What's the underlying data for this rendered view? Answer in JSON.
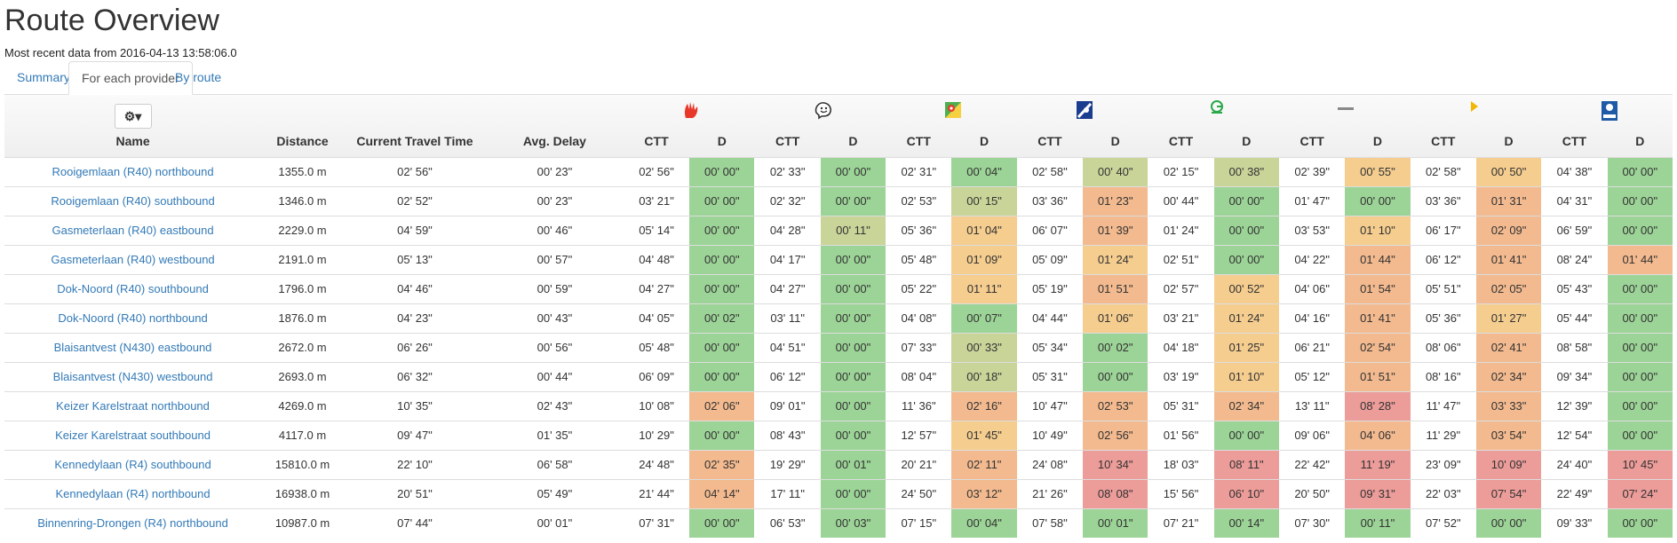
{
  "page": {
    "title": "Route Overview",
    "subtitle": "Most recent data from 2016-04-13 13:58:06.0"
  },
  "tabs": [
    {
      "label": "Summary",
      "active": false
    },
    {
      "label": "For each provider",
      "active": true
    },
    {
      "label": "By route",
      "active": false
    }
  ],
  "columns": {
    "gear_icon": "gear-icon",
    "name": "Name",
    "distance": "Distance",
    "ctt": "Current Travel Time",
    "delay": "Avg. Delay",
    "prov_ctt": "CTT",
    "prov_d": "D"
  },
  "providers": [
    {
      "icon": "hand-logo-icon",
      "color": "#e8382a"
    },
    {
      "icon": "waze-icon",
      "color": "#333333"
    },
    {
      "icon": "google-maps-icon",
      "color": "#4caf50"
    },
    {
      "icon": "tomtom-icon",
      "color": "#1a3d8f"
    },
    {
      "icon": "coyote-icon",
      "color": "#2aa84a"
    },
    {
      "icon": "here-icon",
      "color": "#888888"
    },
    {
      "icon": "bing-icon",
      "color": "#f2b705"
    },
    {
      "icon": "michelin-icon",
      "color": "#1f5aa6"
    }
  ],
  "status_colors": {
    "g": "#9cd497",
    "l": "#c9d499",
    "y": "#f5cd8f",
    "o": "#f3ba8f",
    "r": "#ec9c99"
  },
  "rows": [
    {
      "name": "Rooigemlaan (R40) northbound",
      "distance": "1355.0 m",
      "ctt": "02' 56\"",
      "delay": "00' 23\"",
      "p": [
        [
          "02' 56\"",
          "00' 00\"",
          "g"
        ],
        [
          "02' 33\"",
          "00' 00\"",
          "g"
        ],
        [
          "02' 31\"",
          "00' 04\"",
          "g"
        ],
        [
          "02' 58\"",
          "00' 40\"",
          "l"
        ],
        [
          "02' 15\"",
          "00' 38\"",
          "l"
        ],
        [
          "02' 39\"",
          "00' 55\"",
          "y"
        ],
        [
          "02' 58\"",
          "00' 50\"",
          "y"
        ],
        [
          "04' 38\"",
          "00' 00\"",
          "g"
        ]
      ]
    },
    {
      "name": "Rooigemlaan (R40) southbound",
      "distance": "1346.0 m",
      "ctt": "02' 52\"",
      "delay": "00' 23\"",
      "p": [
        [
          "03' 21\"",
          "00' 00\"",
          "g"
        ],
        [
          "02' 32\"",
          "00' 00\"",
          "g"
        ],
        [
          "02' 53\"",
          "00' 15\"",
          "l"
        ],
        [
          "03' 36\"",
          "01' 23\"",
          "o"
        ],
        [
          "00' 44\"",
          "00' 00\"",
          "g"
        ],
        [
          "01' 47\"",
          "00' 00\"",
          "g"
        ],
        [
          "03' 36\"",
          "01' 31\"",
          "o"
        ],
        [
          "04' 31\"",
          "00' 00\"",
          "g"
        ]
      ]
    },
    {
      "name": "Gasmeterlaan (R40) eastbound",
      "distance": "2229.0 m",
      "ctt": "04' 59\"",
      "delay": "00' 46\"",
      "p": [
        [
          "05' 14\"",
          "00' 00\"",
          "g"
        ],
        [
          "04' 28\"",
          "00' 11\"",
          "l"
        ],
        [
          "05' 36\"",
          "01' 04\"",
          "y"
        ],
        [
          "06' 07\"",
          "01' 39\"",
          "o"
        ],
        [
          "01' 24\"",
          "00' 00\"",
          "g"
        ],
        [
          "03' 53\"",
          "01' 10\"",
          "y"
        ],
        [
          "06' 17\"",
          "02' 09\"",
          "o"
        ],
        [
          "06' 59\"",
          "00' 00\"",
          "g"
        ]
      ]
    },
    {
      "name": "Gasmeterlaan (R40) westbound",
      "distance": "2191.0 m",
      "ctt": "05' 13\"",
      "delay": "00' 57\"",
      "p": [
        [
          "04' 48\"",
          "00' 00\"",
          "g"
        ],
        [
          "04' 17\"",
          "00' 00\"",
          "g"
        ],
        [
          "05' 48\"",
          "01' 09\"",
          "y"
        ],
        [
          "05' 09\"",
          "01' 24\"",
          "y"
        ],
        [
          "02' 51\"",
          "00' 00\"",
          "g"
        ],
        [
          "04' 22\"",
          "01' 44\"",
          "o"
        ],
        [
          "06' 12\"",
          "01' 41\"",
          "o"
        ],
        [
          "08' 24\"",
          "01' 44\"",
          "o"
        ]
      ]
    },
    {
      "name": "Dok-Noord (R40) southbound",
      "distance": "1796.0 m",
      "ctt": "04' 46\"",
      "delay": "00' 59\"",
      "p": [
        [
          "04' 27\"",
          "00' 00\"",
          "g"
        ],
        [
          "04' 27\"",
          "00' 00\"",
          "g"
        ],
        [
          "05' 22\"",
          "01' 11\"",
          "y"
        ],
        [
          "05' 19\"",
          "01' 51\"",
          "o"
        ],
        [
          "02' 57\"",
          "00' 52\"",
          "y"
        ],
        [
          "04' 06\"",
          "01' 54\"",
          "o"
        ],
        [
          "05' 51\"",
          "02' 05\"",
          "o"
        ],
        [
          "05' 43\"",
          "00' 00\"",
          "g"
        ]
      ]
    },
    {
      "name": "Dok-Noord (R40) northbound",
      "distance": "1876.0 m",
      "ctt": "04' 23\"",
      "delay": "00' 43\"",
      "p": [
        [
          "04' 05\"",
          "00' 02\"",
          "g"
        ],
        [
          "03' 11\"",
          "00' 00\"",
          "g"
        ],
        [
          "04' 08\"",
          "00' 07\"",
          "g"
        ],
        [
          "04' 44\"",
          "01' 06\"",
          "y"
        ],
        [
          "03' 21\"",
          "01' 24\"",
          "y"
        ],
        [
          "04' 16\"",
          "01' 41\"",
          "o"
        ],
        [
          "05' 36\"",
          "01' 27\"",
          "y"
        ],
        [
          "05' 44\"",
          "00' 00\"",
          "g"
        ]
      ]
    },
    {
      "name": "Blaisantvest (N430) eastbound",
      "distance": "2672.0 m",
      "ctt": "06' 26\"",
      "delay": "00' 56\"",
      "p": [
        [
          "05' 48\"",
          "00' 00\"",
          "g"
        ],
        [
          "04' 51\"",
          "00' 00\"",
          "g"
        ],
        [
          "07' 33\"",
          "00' 33\"",
          "l"
        ],
        [
          "05' 34\"",
          "00' 02\"",
          "g"
        ],
        [
          "04' 18\"",
          "01' 25\"",
          "y"
        ],
        [
          "06' 21\"",
          "02' 54\"",
          "o"
        ],
        [
          "08' 06\"",
          "02' 41\"",
          "o"
        ],
        [
          "08' 58\"",
          "00' 00\"",
          "g"
        ]
      ]
    },
    {
      "name": "Blaisantvest (N430) westbound",
      "distance": "2693.0 m",
      "ctt": "06' 32\"",
      "delay": "00' 44\"",
      "p": [
        [
          "06' 09\"",
          "00' 00\"",
          "g"
        ],
        [
          "06' 12\"",
          "00' 00\"",
          "g"
        ],
        [
          "08' 04\"",
          "00' 18\"",
          "l"
        ],
        [
          "05' 31\"",
          "00' 00\"",
          "g"
        ],
        [
          "03' 19\"",
          "01' 10\"",
          "y"
        ],
        [
          "05' 12\"",
          "01' 51\"",
          "o"
        ],
        [
          "08' 16\"",
          "02' 34\"",
          "o"
        ],
        [
          "09' 34\"",
          "00' 00\"",
          "g"
        ]
      ]
    },
    {
      "name": "Keizer Karelstraat northbound",
      "distance": "4269.0 m",
      "ctt": "10' 35\"",
      "delay": "02' 43\"",
      "p": [
        [
          "10' 08\"",
          "02' 06\"",
          "o"
        ],
        [
          "09' 01\"",
          "00' 00\"",
          "g"
        ],
        [
          "11' 36\"",
          "02' 16\"",
          "o"
        ],
        [
          "10' 47\"",
          "02' 53\"",
          "o"
        ],
        [
          "05' 31\"",
          "02' 34\"",
          "o"
        ],
        [
          "13' 11\"",
          "08' 28\"",
          "r"
        ],
        [
          "11' 47\"",
          "03' 33\"",
          "o"
        ],
        [
          "12' 39\"",
          "00' 00\"",
          "g"
        ]
      ]
    },
    {
      "name": "Keizer Karelstraat southbound",
      "distance": "4117.0 m",
      "ctt": "09' 47\"",
      "delay": "01' 35\"",
      "p": [
        [
          "10' 29\"",
          "00' 00\"",
          "g"
        ],
        [
          "08' 43\"",
          "00' 00\"",
          "g"
        ],
        [
          "12' 57\"",
          "01' 45\"",
          "y"
        ],
        [
          "10' 49\"",
          "02' 56\"",
          "o"
        ],
        [
          "01' 56\"",
          "00' 00\"",
          "g"
        ],
        [
          "09' 06\"",
          "04' 06\"",
          "o"
        ],
        [
          "11' 29\"",
          "03' 54\"",
          "o"
        ],
        [
          "12' 54\"",
          "00' 00\"",
          "g"
        ]
      ]
    },
    {
      "name": "Kennedylaan (R4) southbound",
      "distance": "15810.0 m",
      "ctt": "22' 10\"",
      "delay": "06' 58\"",
      "p": [
        [
          "24' 48\"",
          "02' 35\"",
          "o"
        ],
        [
          "19' 29\"",
          "00' 01\"",
          "g"
        ],
        [
          "20' 21\"",
          "02' 11\"",
          "o"
        ],
        [
          "24' 08\"",
          "10' 34\"",
          "r"
        ],
        [
          "18' 03\"",
          "08' 11\"",
          "r"
        ],
        [
          "22' 42\"",
          "11' 19\"",
          "r"
        ],
        [
          "23' 09\"",
          "10' 09\"",
          "r"
        ],
        [
          "24' 40\"",
          "10' 45\"",
          "r"
        ]
      ]
    },
    {
      "name": "Kennedylaan (R4) northbound",
      "distance": "16938.0 m",
      "ctt": "20' 51\"",
      "delay": "05' 49\"",
      "p": [
        [
          "21' 44\"",
          "04' 14\"",
          "o"
        ],
        [
          "17' 11\"",
          "00' 00\"",
          "g"
        ],
        [
          "24' 50\"",
          "03' 12\"",
          "o"
        ],
        [
          "21' 26\"",
          "08' 08\"",
          "r"
        ],
        [
          "15' 56\"",
          "06' 10\"",
          "r"
        ],
        [
          "20' 50\"",
          "09' 31\"",
          "r"
        ],
        [
          "22' 03\"",
          "07' 54\"",
          "r"
        ],
        [
          "22' 49\"",
          "07' 24\"",
          "r"
        ]
      ]
    },
    {
      "name": "Binnenring-Drongen (R4) northbound",
      "distance": "10987.0 m",
      "ctt": "07' 44\"",
      "delay": "00' 01\"",
      "p": [
        [
          "07' 31\"",
          "00' 00\"",
          "g"
        ],
        [
          "06' 53\"",
          "00' 03\"",
          "g"
        ],
        [
          "07' 15\"",
          "00' 04\"",
          "g"
        ],
        [
          "07' 58\"",
          "00' 01\"",
          "g"
        ],
        [
          "07' 21\"",
          "00' 14\"",
          "g"
        ],
        [
          "07' 30\"",
          "00' 11\"",
          "g"
        ],
        [
          "07' 52\"",
          "00' 00\"",
          "g"
        ],
        [
          "09' 33\"",
          "00' 00\"",
          "g"
        ]
      ]
    }
  ]
}
